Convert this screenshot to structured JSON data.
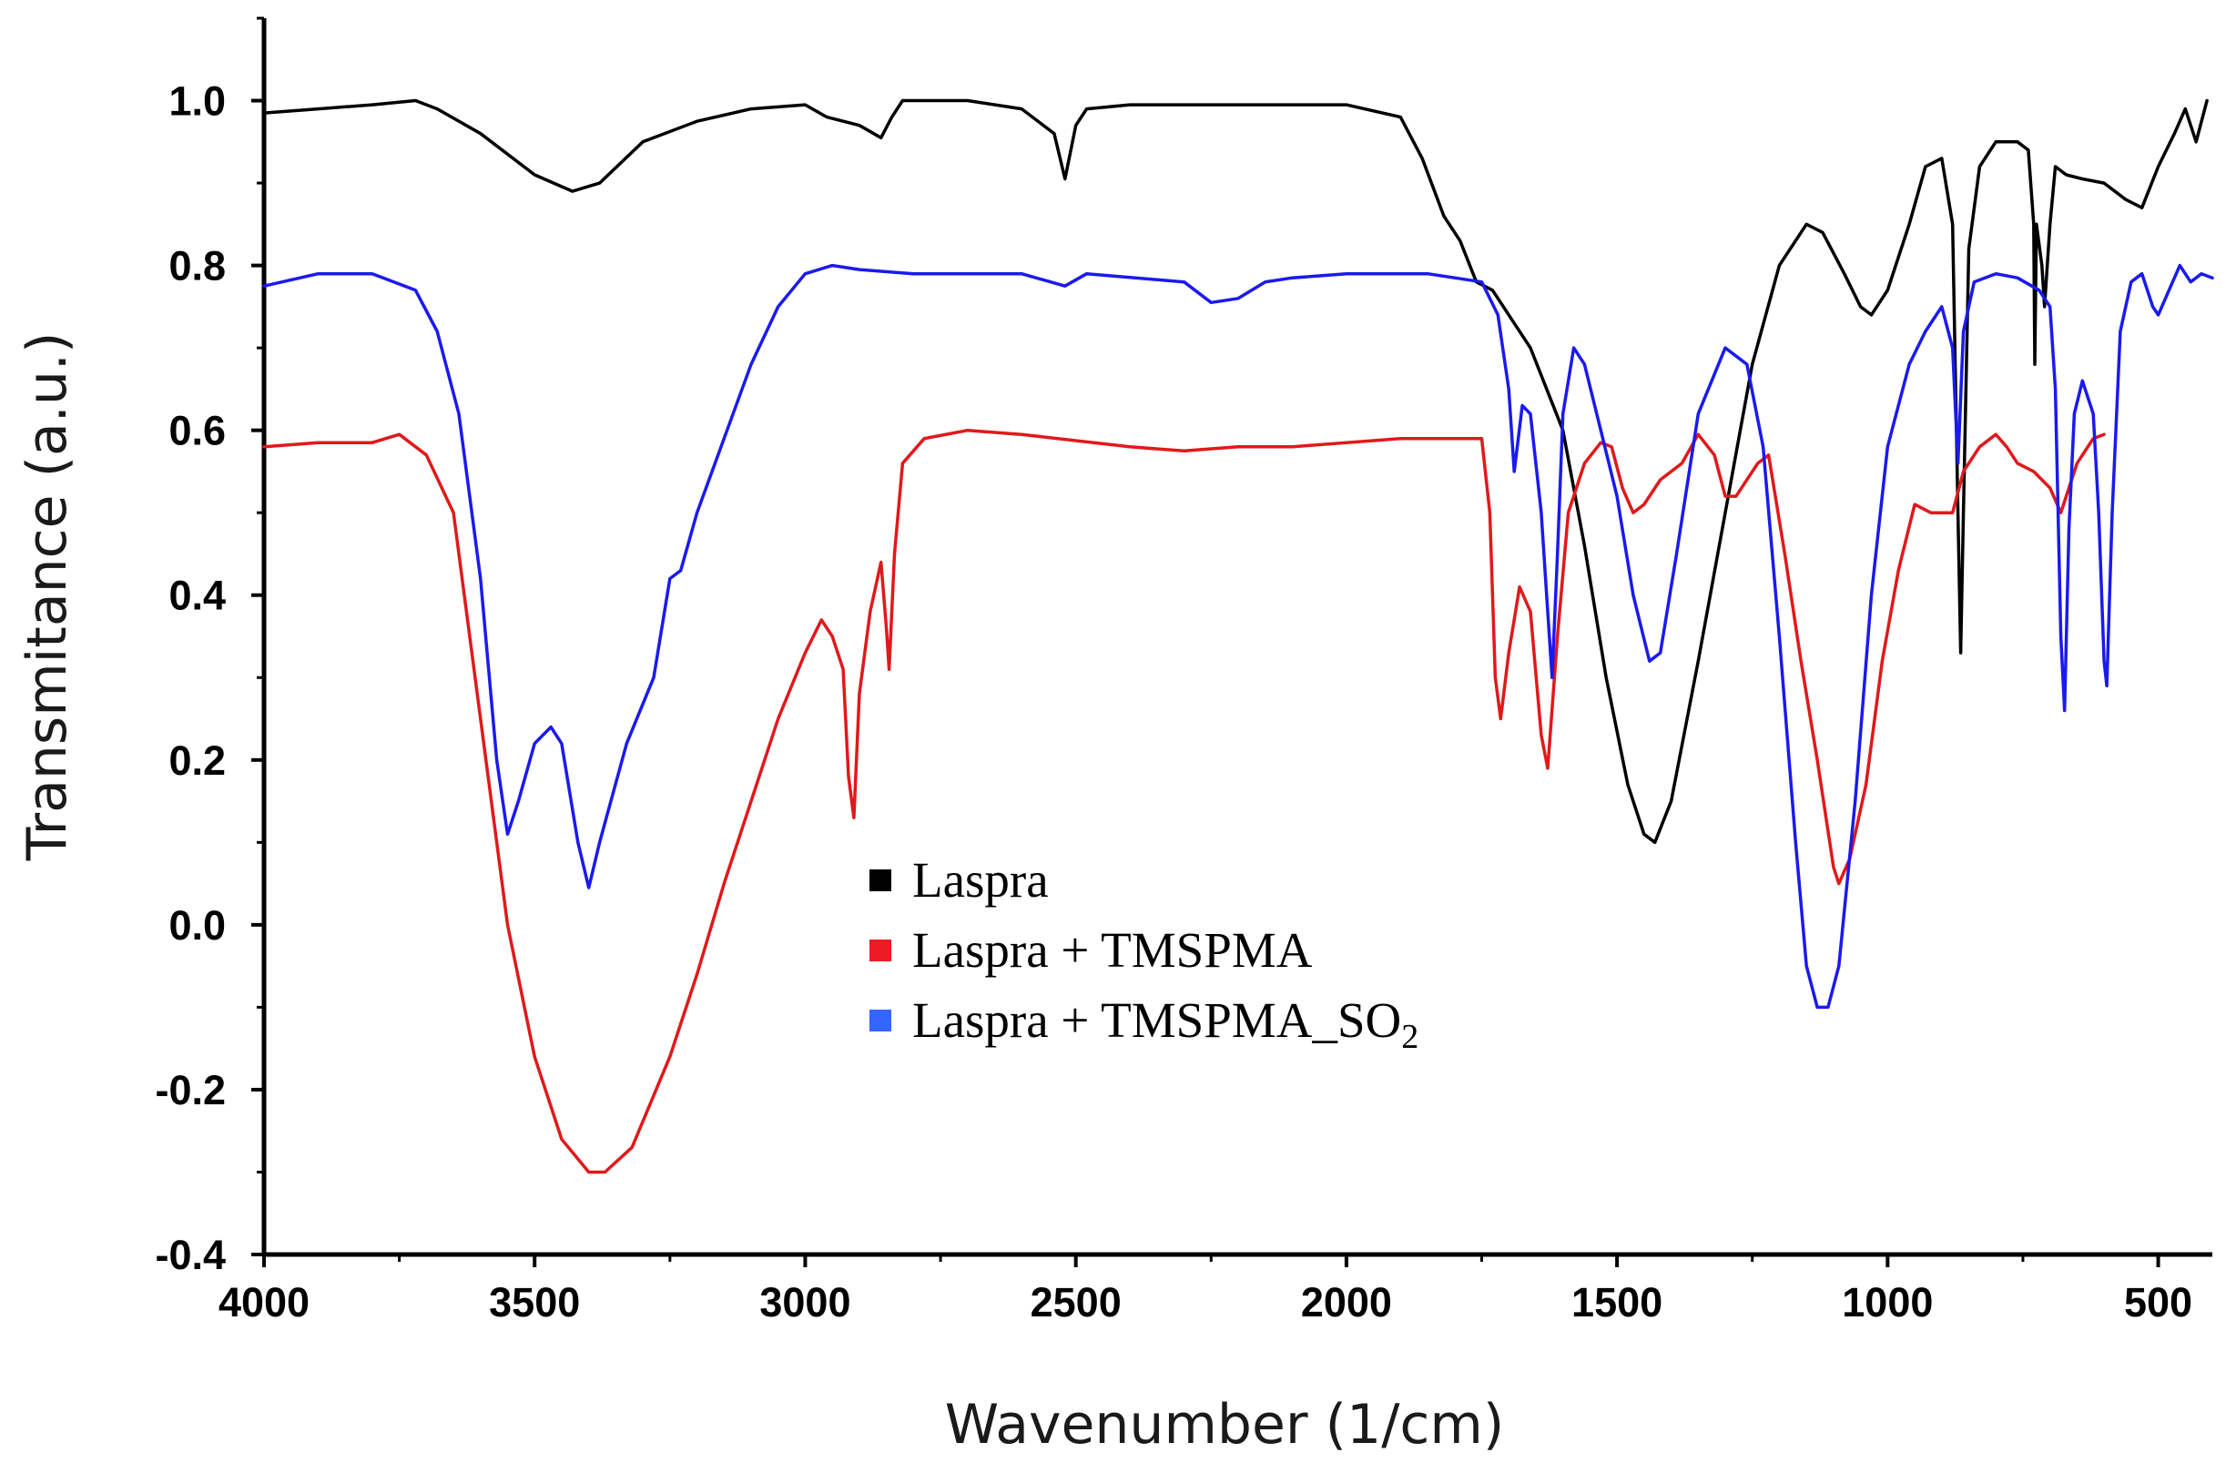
{
  "chart_data": {
    "type": "line",
    "title": "",
    "xlabel": "Wavenumber (1/cm)",
    "ylabel": "Transmitance (a.u.)",
    "xlim": [
      4000,
      400
    ],
    "ylim": [
      -0.4,
      1.1
    ],
    "x_ticks": [
      4000,
      3500,
      3000,
      2500,
      2000,
      1500,
      1000,
      500
    ],
    "x_tick_labels": [
      "4000",
      "3500",
      "3000",
      "2500",
      "2000",
      "1500",
      "1000",
      "500"
    ],
    "y_ticks": [
      -0.4,
      -0.2,
      0.0,
      0.2,
      0.4,
      0.6,
      0.8,
      1.0
    ],
    "y_tick_labels": [
      "-0.4",
      "-0.2",
      "0.0",
      "0.2",
      "0.4",
      "0.6",
      "0.8",
      "1.0"
    ],
    "legend_position": "center",
    "series": [
      {
        "name": "Laspra",
        "label_main": "Laspra",
        "label_sub": "",
        "color": "#000000",
        "legend_color": "#000000",
        "points": [
          [
            4000,
            0.985
          ],
          [
            3900,
            0.99
          ],
          [
            3800,
            0.995
          ],
          [
            3720,
            1.0
          ],
          [
            3680,
            0.99
          ],
          [
            3600,
            0.96
          ],
          [
            3500,
            0.91
          ],
          [
            3430,
            0.89
          ],
          [
            3380,
            0.9
          ],
          [
            3300,
            0.95
          ],
          [
            3200,
            0.975
          ],
          [
            3100,
            0.99
          ],
          [
            3000,
            0.995
          ],
          [
            2960,
            0.98
          ],
          [
            2900,
            0.97
          ],
          [
            2860,
            0.955
          ],
          [
            2840,
            0.98
          ],
          [
            2820,
            1.0
          ],
          [
            2700,
            1.0
          ],
          [
            2600,
            0.99
          ],
          [
            2540,
            0.96
          ],
          [
            2520,
            0.905
          ],
          [
            2500,
            0.97
          ],
          [
            2480,
            0.99
          ],
          [
            2400,
            0.995
          ],
          [
            2200,
            0.995
          ],
          [
            2000,
            0.995
          ],
          [
            1900,
            0.98
          ],
          [
            1860,
            0.93
          ],
          [
            1820,
            0.86
          ],
          [
            1790,
            0.83
          ],
          [
            1760,
            0.78
          ],
          [
            1730,
            0.77
          ],
          [
            1700,
            0.74
          ],
          [
            1660,
            0.7
          ],
          [
            1600,
            0.6
          ],
          [
            1560,
            0.46
          ],
          [
            1520,
            0.3
          ],
          [
            1480,
            0.17
          ],
          [
            1450,
            0.11
          ],
          [
            1430,
            0.1
          ],
          [
            1400,
            0.15
          ],
          [
            1350,
            0.32
          ],
          [
            1300,
            0.5
          ],
          [
            1250,
            0.68
          ],
          [
            1200,
            0.8
          ],
          [
            1150,
            0.85
          ],
          [
            1120,
            0.84
          ],
          [
            1080,
            0.79
          ],
          [
            1050,
            0.75
          ],
          [
            1030,
            0.74
          ],
          [
            1000,
            0.77
          ],
          [
            960,
            0.85
          ],
          [
            930,
            0.92
          ],
          [
            900,
            0.93
          ],
          [
            880,
            0.85
          ],
          [
            870,
            0.5
          ],
          [
            865,
            0.33
          ],
          [
            860,
            0.5
          ],
          [
            850,
            0.82
          ],
          [
            830,
            0.92
          ],
          [
            800,
            0.95
          ],
          [
            760,
            0.95
          ],
          [
            740,
            0.94
          ],
          [
            730,
            0.85
          ],
          [
            728,
            0.68
          ],
          [
            725,
            0.85
          ],
          [
            715,
            0.8
          ],
          [
            710,
            0.75
          ],
          [
            700,
            0.85
          ],
          [
            690,
            0.92
          ],
          [
            670,
            0.91
          ],
          [
            640,
            0.905
          ],
          [
            600,
            0.9
          ],
          [
            560,
            0.88
          ],
          [
            530,
            0.87
          ],
          [
            500,
            0.92
          ],
          [
            470,
            0.96
          ],
          [
            450,
            0.99
          ],
          [
            430,
            0.95
          ],
          [
            410,
            1.0
          ]
        ]
      },
      {
        "name": "Laspra + TMSPMA",
        "label_main": "Laspra + TMSPMA",
        "label_sub": "",
        "color": "#e0191b",
        "legend_color": "#ed1c24",
        "points": [
          [
            4000,
            0.58
          ],
          [
            3900,
            0.585
          ],
          [
            3800,
            0.585
          ],
          [
            3750,
            0.595
          ],
          [
            3700,
            0.57
          ],
          [
            3650,
            0.5
          ],
          [
            3600,
            0.25
          ],
          [
            3550,
            0.0
          ],
          [
            3500,
            -0.16
          ],
          [
            3450,
            -0.26
          ],
          [
            3400,
            -0.3
          ],
          [
            3370,
            -0.3
          ],
          [
            3320,
            -0.27
          ],
          [
            3250,
            -0.16
          ],
          [
            3200,
            -0.06
          ],
          [
            3150,
            0.05
          ],
          [
            3100,
            0.15
          ],
          [
            3050,
            0.25
          ],
          [
            3000,
            0.33
          ],
          [
            2970,
            0.37
          ],
          [
            2950,
            0.35
          ],
          [
            2930,
            0.31
          ],
          [
            2920,
            0.18
          ],
          [
            2910,
            0.13
          ],
          [
            2900,
            0.28
          ],
          [
            2880,
            0.38
          ],
          [
            2860,
            0.44
          ],
          [
            2850,
            0.36
          ],
          [
            2845,
            0.31
          ],
          [
            2835,
            0.45
          ],
          [
            2820,
            0.56
          ],
          [
            2780,
            0.59
          ],
          [
            2700,
            0.6
          ],
          [
            2600,
            0.595
          ],
          [
            2400,
            0.58
          ],
          [
            2300,
            0.575
          ],
          [
            2200,
            0.58
          ],
          [
            2100,
            0.58
          ],
          [
            1900,
            0.59
          ],
          [
            1800,
            0.59
          ],
          [
            1750,
            0.59
          ],
          [
            1735,
            0.5
          ],
          [
            1725,
            0.3
          ],
          [
            1715,
            0.25
          ],
          [
            1700,
            0.33
          ],
          [
            1680,
            0.41
          ],
          [
            1660,
            0.38
          ],
          [
            1640,
            0.23
          ],
          [
            1628,
            0.19
          ],
          [
            1610,
            0.35
          ],
          [
            1590,
            0.5
          ],
          [
            1560,
            0.56
          ],
          [
            1530,
            0.585
          ],
          [
            1510,
            0.58
          ],
          [
            1490,
            0.53
          ],
          [
            1470,
            0.5
          ],
          [
            1450,
            0.51
          ],
          [
            1420,
            0.54
          ],
          [
            1380,
            0.56
          ],
          [
            1350,
            0.595
          ],
          [
            1320,
            0.57
          ],
          [
            1300,
            0.52
          ],
          [
            1280,
            0.52
          ],
          [
            1240,
            0.56
          ],
          [
            1220,
            0.57
          ],
          [
            1190,
            0.45
          ],
          [
            1160,
            0.32
          ],
          [
            1130,
            0.2
          ],
          [
            1100,
            0.07
          ],
          [
            1090,
            0.05
          ],
          [
            1070,
            0.08
          ],
          [
            1040,
            0.17
          ],
          [
            1010,
            0.32
          ],
          [
            980,
            0.43
          ],
          [
            950,
            0.51
          ],
          [
            920,
            0.5
          ],
          [
            880,
            0.5
          ],
          [
            860,
            0.55
          ],
          [
            830,
            0.58
          ],
          [
            800,
            0.595
          ],
          [
            780,
            0.58
          ],
          [
            760,
            0.56
          ],
          [
            730,
            0.55
          ],
          [
            700,
            0.53
          ],
          [
            680,
            0.5
          ],
          [
            650,
            0.56
          ],
          [
            620,
            0.59
          ],
          [
            600,
            0.595
          ]
        ]
      },
      {
        "name": "Laspra + TMSPMA_SO2",
        "label_main": "Laspra + TMSPMA_SO",
        "label_sub": "2",
        "color": "#1a1aee",
        "legend_color": "#3366ff",
        "points": [
          [
            4000,
            0.775
          ],
          [
            3900,
            0.79
          ],
          [
            3800,
            0.79
          ],
          [
            3720,
            0.77
          ],
          [
            3680,
            0.72
          ],
          [
            3640,
            0.62
          ],
          [
            3600,
            0.42
          ],
          [
            3570,
            0.2
          ],
          [
            3550,
            0.11
          ],
          [
            3530,
            0.15
          ],
          [
            3500,
            0.22
          ],
          [
            3470,
            0.24
          ],
          [
            3450,
            0.22
          ],
          [
            3420,
            0.1
          ],
          [
            3400,
            0.045
          ],
          [
            3380,
            0.1
          ],
          [
            3330,
            0.22
          ],
          [
            3280,
            0.3
          ],
          [
            3250,
            0.42
          ],
          [
            3230,
            0.43
          ],
          [
            3200,
            0.5
          ],
          [
            3150,
            0.59
          ],
          [
            3100,
            0.68
          ],
          [
            3050,
            0.75
          ],
          [
            3000,
            0.79
          ],
          [
            2950,
            0.8
          ],
          [
            2900,
            0.795
          ],
          [
            2800,
            0.79
          ],
          [
            2600,
            0.79
          ],
          [
            2520,
            0.775
          ],
          [
            2480,
            0.79
          ],
          [
            2300,
            0.78
          ],
          [
            2250,
            0.755
          ],
          [
            2200,
            0.76
          ],
          [
            2150,
            0.78
          ],
          [
            2100,
            0.785
          ],
          [
            2000,
            0.79
          ],
          [
            1850,
            0.79
          ],
          [
            1800,
            0.785
          ],
          [
            1750,
            0.78
          ],
          [
            1720,
            0.74
          ],
          [
            1700,
            0.65
          ],
          [
            1690,
            0.55
          ],
          [
            1675,
            0.63
          ],
          [
            1660,
            0.62
          ],
          [
            1640,
            0.5
          ],
          [
            1630,
            0.4
          ],
          [
            1620,
            0.3
          ],
          [
            1610,
            0.45
          ],
          [
            1600,
            0.62
          ],
          [
            1580,
            0.7
          ],
          [
            1560,
            0.68
          ],
          [
            1530,
            0.6
          ],
          [
            1500,
            0.52
          ],
          [
            1470,
            0.4
          ],
          [
            1440,
            0.32
          ],
          [
            1420,
            0.33
          ],
          [
            1390,
            0.45
          ],
          [
            1350,
            0.62
          ],
          [
            1300,
            0.7
          ],
          [
            1260,
            0.68
          ],
          [
            1230,
            0.58
          ],
          [
            1200,
            0.35
          ],
          [
            1170,
            0.1
          ],
          [
            1150,
            -0.05
          ],
          [
            1130,
            -0.1
          ],
          [
            1110,
            -0.1
          ],
          [
            1090,
            -0.05
          ],
          [
            1060,
            0.15
          ],
          [
            1030,
            0.4
          ],
          [
            1000,
            0.58
          ],
          [
            960,
            0.68
          ],
          [
            930,
            0.72
          ],
          [
            900,
            0.75
          ],
          [
            880,
            0.7
          ],
          [
            870,
            0.56
          ],
          [
            860,
            0.72
          ],
          [
            840,
            0.78
          ],
          [
            800,
            0.79
          ],
          [
            760,
            0.785
          ],
          [
            720,
            0.77
          ],
          [
            700,
            0.75
          ],
          [
            690,
            0.65
          ],
          [
            680,
            0.35
          ],
          [
            673,
            0.26
          ],
          [
            665,
            0.48
          ],
          [
            655,
            0.62
          ],
          [
            640,
            0.66
          ],
          [
            620,
            0.62
          ],
          [
            610,
            0.5
          ],
          [
            600,
            0.32
          ],
          [
            595,
            0.29
          ],
          [
            585,
            0.5
          ],
          [
            570,
            0.72
          ],
          [
            550,
            0.78
          ],
          [
            530,
            0.79
          ],
          [
            510,
            0.75
          ],
          [
            500,
            0.74
          ],
          [
            480,
            0.77
          ],
          [
            460,
            0.8
          ],
          [
            440,
            0.78
          ],
          [
            420,
            0.79
          ],
          [
            400,
            0.785
          ]
        ]
      }
    ]
  }
}
